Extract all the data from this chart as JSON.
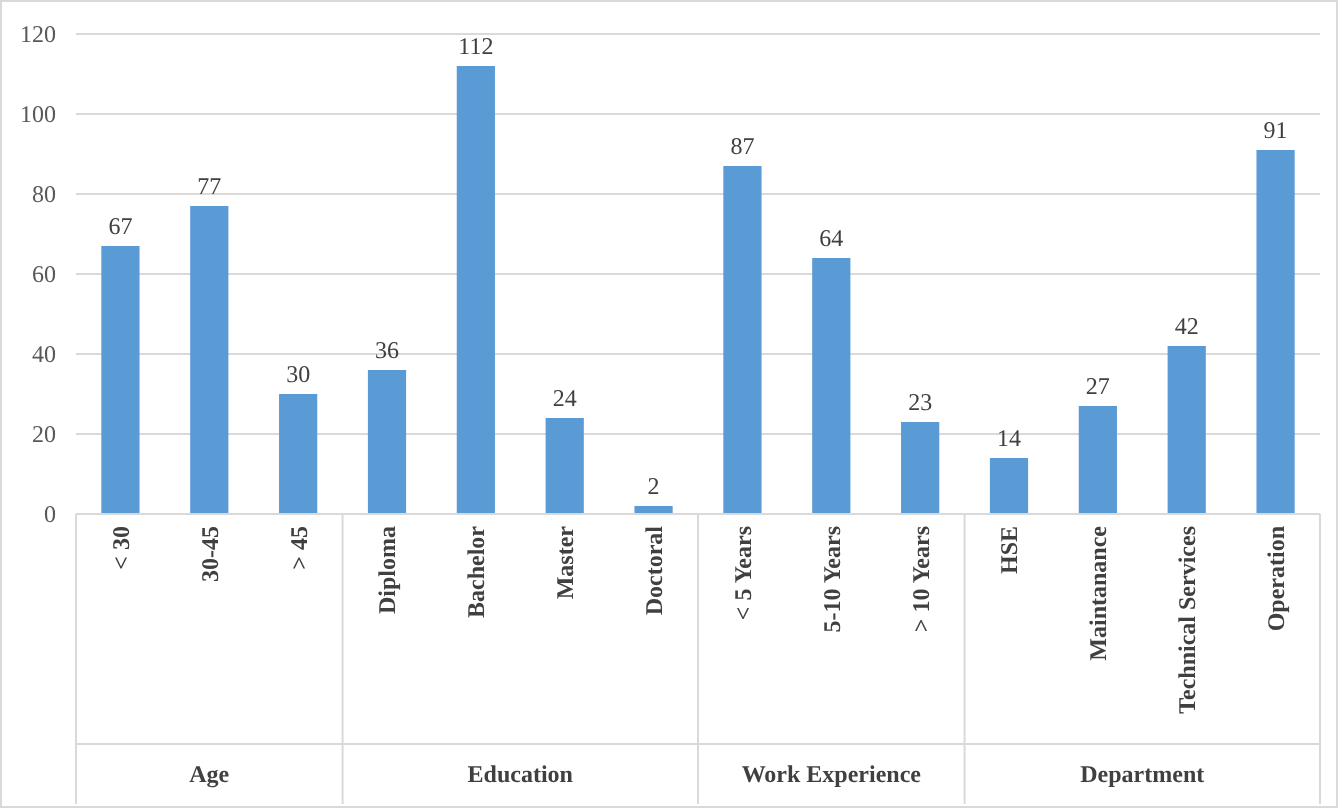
{
  "chart_data": {
    "type": "bar",
    "categories": [
      "< 30",
      "30-45",
      "> 45",
      "Diploma",
      "Bachelor",
      "Master",
      "Doctoral",
      "< 5 Years",
      "5-10 Years",
      "> 10 Years",
      "HSE",
      "Maintanance",
      "Technical Services",
      "Operation"
    ],
    "series": [
      {
        "color": "#5b9bd5",
        "values": [
          67,
          77,
          30,
          null,
          null,
          null,
          null,
          null,
          null,
          null,
          null,
          null,
          null,
          null
        ]
      },
      {
        "color": "#5b9bd5",
        "values": [
          null,
          null,
          null,
          36,
          112,
          24,
          2,
          null,
          null,
          null,
          null,
          null,
          null,
          null
        ]
      },
      {
        "color": "#5b9bd5",
        "values": [
          null,
          null,
          null,
          null,
          null,
          null,
          null,
          87,
          64,
          23,
          null,
          null,
          null,
          null
        ]
      },
      {
        "color": "#5b9bd5",
        "values": [
          null,
          null,
          null,
          null,
          null,
          null,
          null,
          null,
          null,
          null,
          14,
          27,
          42,
          91
        ]
      }
    ],
    "ylim": [
      0,
      120
    ],
    "yticks": [
      0,
      20,
      40,
      60,
      80,
      100,
      120
    ],
    "grid": "y",
    "data_labels": true,
    "annotations": [
      "Age",
      "Education",
      "Work Experience",
      "Department"
    ]
  }
}
